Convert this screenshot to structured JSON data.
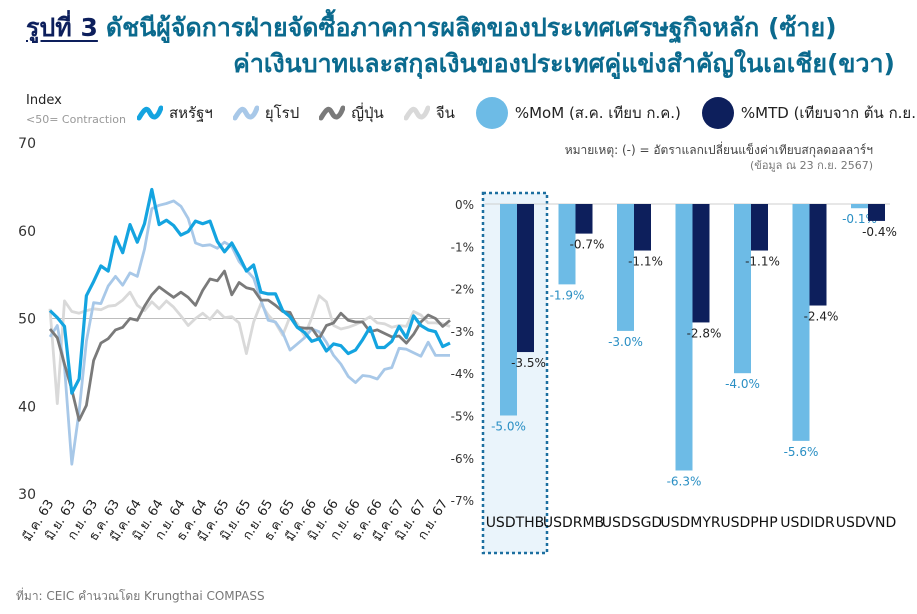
{
  "title": {
    "figure_label": "รูปที่ 3",
    "line1": "ดัชนีผู้จัดการฝ่ายจัดซื้อภาคการผลิตของประเทศเศรษฐกิจหลัก (ซ้าย)",
    "line2": "ค่าเงินบาทและสกุลเงินของประเทศคู่แข่งสำคัญในเอเชีย(ขวา)"
  },
  "left_axis_label": "Index",
  "left_axis_note": "<50= Contraction",
  "legend": [
    {
      "label": "สหรัฐฯ",
      "color": "#14a4e0",
      "kind": "line"
    },
    {
      "label": "ยุโรป",
      "color": "#a8c8e8",
      "kind": "line"
    },
    {
      "label": "ญี่ปุ่น",
      "color": "#7a7a7a",
      "kind": "line"
    },
    {
      "label": "จีน",
      "color": "#d9d9d9",
      "kind": "line"
    },
    {
      "label": "%MoM (ส.ค. เทียบ ก.ค.)",
      "color": "#6dbbe6",
      "kind": "dot"
    },
    {
      "label": "%MTD (เทียบจาก ต้น ก.ย.)",
      "color": "#0d1f5c",
      "kind": "dot"
    }
  ],
  "note": {
    "line1": "หมายเหตุ: (-) = อัตราแลกเปลี่ยนแข็งค่าเทียบสกุลดอลลาร์ฯ",
    "line2": "(ข้อมูล ณ 23 ก.ย. 2567)"
  },
  "source": "ที่มา: CEIC คำนวณโดย Krungthai COMPASS",
  "chart_data": [
    {
      "type": "line",
      "ylabel": "Index",
      "ylim": [
        30,
        70
      ],
      "yticks": [
        30,
        40,
        50,
        60,
        70
      ],
      "reference_line": 50,
      "x_tick_labels": [
        "มี.ค. 63",
        "มิ.ย. 63",
        "ก.ย. 63",
        "ธ.ค. 63",
        "มี.ค. 64",
        "มิ.ย. 64",
        "ก.ย. 64",
        "ธ.ค. 64",
        "มี.ค. 65",
        "มิ.ย. 65",
        "ก.ย. 65",
        "ธ.ค. 65",
        "มี.ค. 66",
        "มิ.ย. 66",
        "ก.ย. 66",
        "ธ.ค. 66",
        "มี.ค. 67",
        "มิ.ย. 67",
        "ก.ย. 67"
      ],
      "x_start": "2020-01",
      "x_end": "2024-08",
      "series": [
        {
          "name": "สหรัฐฯ",
          "color": "#14a4e0",
          "values": [
            50.9,
            50.1,
            49.1,
            41.5,
            43.1,
            52.6,
            54.2,
            56.0,
            55.4,
            59.3,
            57.5,
            60.7,
            58.7,
            60.8,
            64.7,
            60.7,
            61.2,
            60.6,
            59.5,
            59.9,
            61.1,
            60.8,
            61.1,
            58.8,
            57.6,
            58.6,
            57.1,
            55.4,
            56.1,
            53.0,
            52.8,
            52.8,
            50.9,
            50.2,
            49.0,
            48.4,
            47.4,
            47.7,
            46.3,
            47.1,
            46.9,
            46.0,
            46.4,
            47.6,
            49.0,
            46.7,
            46.7,
            47.4,
            49.1,
            47.8,
            50.3,
            49.2,
            48.7,
            48.5,
            46.8,
            47.2
          ]
        },
        {
          "name": "ยุโรป",
          "color": "#a8c8e8",
          "values": [
            47.9,
            49.2,
            44.5,
            33.4,
            39.4,
            47.4,
            51.8,
            51.7,
            53.7,
            54.8,
            53.8,
            55.2,
            54.8,
            57.9,
            62.5,
            62.9,
            63.1,
            63.4,
            62.8,
            61.4,
            58.6,
            58.3,
            58.4,
            58.0,
            58.7,
            58.2,
            56.5,
            55.5,
            54.6,
            52.1,
            49.8,
            49.6,
            48.4,
            46.4,
            47.1,
            47.8,
            48.8,
            48.5,
            47.3,
            45.8,
            44.8,
            43.4,
            42.7,
            43.5,
            43.4,
            43.1,
            44.2,
            44.4,
            46.6,
            46.5,
            46.1,
            45.7,
            47.3,
            45.8,
            45.8,
            45.8
          ]
        },
        {
          "name": "ญี่ปุ่น",
          "color": "#7a7a7a",
          "values": [
            48.8,
            47.8,
            44.8,
            41.9,
            38.4,
            40.1,
            45.2,
            47.2,
            47.7,
            48.7,
            49.0,
            50.0,
            49.8,
            51.4,
            52.7,
            53.6,
            53.0,
            52.4,
            53.0,
            52.4,
            51.5,
            53.2,
            54.5,
            54.3,
            55.4,
            52.7,
            54.1,
            53.5,
            53.3,
            52.1,
            52.1,
            51.5,
            50.8,
            50.7,
            49.0,
            48.9,
            48.9,
            47.7,
            49.2,
            49.5,
            50.6,
            49.8,
            49.6,
            49.6,
            48.5,
            48.7,
            48.3,
            47.9,
            48.0,
            47.2,
            48.2,
            49.6,
            50.4,
            50.0,
            49.1,
            49.8
          ]
        },
        {
          "name": "จีน",
          "color": "#d9d9d9",
          "values": [
            51.1,
            40.3,
            52.0,
            50.8,
            50.6,
            50.9,
            51.1,
            51.0,
            51.4,
            51.5,
            52.1,
            53.0,
            51.5,
            50.9,
            51.9,
            51.1,
            52.0,
            51.3,
            50.3,
            49.2,
            50.0,
            50.6,
            49.9,
            50.9,
            50.1,
            50.2,
            49.5,
            46.0,
            49.6,
            51.7,
            50.4,
            49.5,
            48.1,
            50.2,
            49.4,
            48.0,
            50.1,
            52.6,
            51.9,
            49.2,
            48.8,
            49.0,
            49.3,
            49.7,
            50.2,
            49.5,
            49.4,
            49.0,
            49.2,
            49.1,
            50.8,
            50.4,
            49.5,
            49.5,
            49.4,
            49.1
          ]
        }
      ]
    },
    {
      "type": "bar",
      "categories": [
        "USDTHB",
        "USDRMB",
        "USDSGD",
        "USDMYR",
        "USDPHP",
        "USDIDR",
        "USDVND"
      ],
      "ylim": [
        -7,
        0
      ],
      "yticks": [
        "0%",
        "-1%",
        "-2%",
        "-3%",
        "-4%",
        "-5%",
        "-6%",
        "-7%"
      ],
      "highlight": "USDTHB",
      "series": [
        {
          "name": "%MoM (ส.ค. เทียบ ก.ค.)",
          "color": "#6dbbe6",
          "label_color": "#2a8fc4",
          "values": [
            -5.0,
            -1.9,
            -3.0,
            -6.3,
            -4.0,
            -5.6,
            -0.1
          ],
          "labels": [
            "-5.0%",
            "-1.9%",
            "-3.0%",
            "-6.3%",
            "-4.0%",
            "-5.6%",
            "-0.1%"
          ]
        },
        {
          "name": "%MTD (เทียบจาก ต้น ก.ย.)",
          "color": "#0d1f5c",
          "label_color": "#222222",
          "values": [
            -3.5,
            -0.7,
            -1.1,
            -2.8,
            -1.1,
            -2.4,
            -0.4
          ],
          "labels": [
            "-3.5%",
            "-0.7%",
            "-1.1%",
            "-2.8%",
            "-1.1%",
            "-2.4%",
            "-0.4%"
          ]
        }
      ]
    }
  ]
}
